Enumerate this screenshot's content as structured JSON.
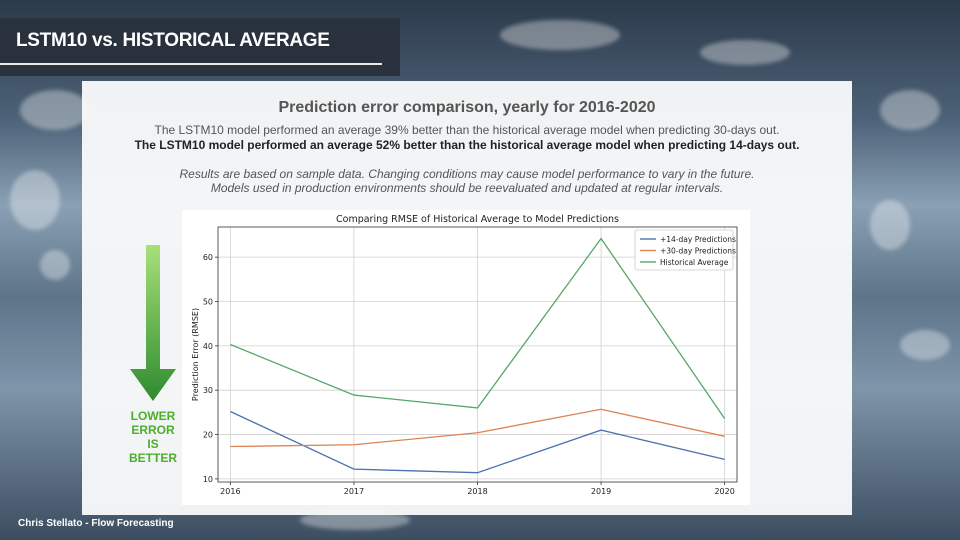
{
  "slide": {
    "title": "LSTM10 vs. HISTORICAL AVERAGE",
    "footer": "Chris Stellato - Flow Forecasting"
  },
  "panel": {
    "heading": "Prediction error comparison, yearly for 2016-2020",
    "line1": "The LSTM10 model performed an average 39% better than the historical average model when predicting 30-days out.",
    "line2": "The LSTM10 model performed an average 52% better than the historical average model when predicting 14-days out.",
    "line3": "Results are based on sample data. Changing conditions may cause model performance to vary in the future.",
    "line4": "Models used in production environments should be reevaluated and updated at regular intervals.",
    "indicator": "LOWER\nERROR\nIS\nBETTER"
  },
  "colors": {
    "arrow_top": "#a8e07a",
    "arrow_bottom": "#2e8b2e",
    "indicator_text": "#4caf2a"
  },
  "chart_data": {
    "type": "line",
    "title": "Comparing RMSE of Historical Average to Model Predictions",
    "xlabel": "",
    "ylabel": "Prediction Error (RMSE)",
    "x": [
      2016,
      2017,
      2018,
      2019,
      2020
    ],
    "ylim": [
      9.3,
      66.8
    ],
    "yticks": [
      10,
      20,
      30,
      40,
      50,
      60
    ],
    "grid": true,
    "legend": "top-right",
    "series": [
      {
        "name": "+14-day Predictions",
        "color": "#4c72b0",
        "values": [
          25.2,
          12.2,
          11.4,
          21.0,
          14.4
        ]
      },
      {
        "name": "+30-day Predictions",
        "color": "#dd8452",
        "values": [
          17.3,
          17.7,
          20.4,
          25.7,
          19.6
        ]
      },
      {
        "name": "Historical Average",
        "color": "#55a868",
        "values": [
          40.3,
          28.9,
          26.0,
          64.2,
          23.6
        ]
      }
    ]
  }
}
